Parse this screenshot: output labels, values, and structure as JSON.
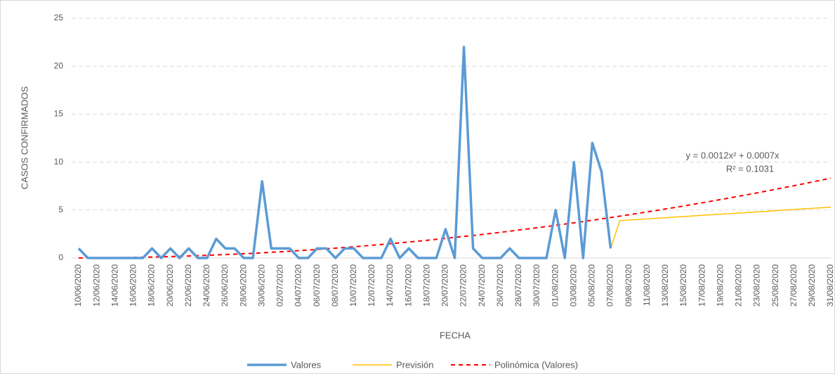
{
  "chart_data": {
    "type": "line",
    "y_label": "CASOS CONFIRMADOS",
    "x_label": "FECHA",
    "annotation": [
      "y = 0.0012x² + 0.0007x",
      "R² = 0.1031"
    ],
    "categories": [
      "10/06/2020",
      null,
      "12/06/2020",
      null,
      "14/06/2020",
      null,
      "16/06/2020",
      null,
      "18/06/2020",
      null,
      "20/06/2020",
      null,
      "22/06/2020",
      null,
      "24/06/2020",
      null,
      "26/06/2020",
      null,
      "28/06/2020",
      null,
      "30/06/2020",
      null,
      "02/07/2020",
      null,
      "04/07/2020",
      null,
      "06/07/2020",
      null,
      "08/07/2020",
      null,
      "10/07/2020",
      null,
      "12/07/2020",
      null,
      "14/07/2020",
      null,
      "16/07/2020",
      null,
      "18/07/2020",
      null,
      "20/07/2020",
      null,
      "22/07/2020",
      null,
      "24/07/2020",
      null,
      "26/07/2020",
      null,
      "28/07/2020",
      null,
      "30/07/2020",
      null,
      "01/08/2020",
      null,
      "03/08/2020",
      null,
      "05/08/2020",
      null,
      "07/08/2020",
      null,
      "09/08/2020",
      null,
      "11/08/2020",
      null,
      "13/08/2020",
      null,
      "15/08/2020",
      null,
      "17/08/2020",
      null,
      "19/08/2020",
      null,
      "21/08/2020",
      null,
      "23/08/2020",
      null,
      "25/08/2020",
      null,
      "27/08/2020",
      null,
      "29/08/2020",
      null,
      "31/08/2020"
    ],
    "series": [
      {
        "name": "Valores",
        "color": "#5b9bd5",
        "style": "solid",
        "values": [
          1,
          0,
          0,
          0,
          0,
          0,
          0,
          0,
          1,
          0,
          1,
          0,
          1,
          0,
          0,
          2,
          1,
          1,
          0,
          0,
          8,
          1,
          1,
          1,
          0,
          0,
          1,
          1,
          0,
          1,
          1,
          0,
          0,
          0,
          2,
          0,
          1,
          0,
          0,
          0,
          3,
          0,
          22,
          1,
          0,
          0,
          0,
          1,
          0,
          0,
          0,
          0,
          5,
          0,
          10,
          0,
          12,
          9,
          1,
          null,
          null,
          null,
          null,
          null,
          null,
          null,
          null,
          null,
          null,
          null,
          null,
          null,
          null,
          null,
          null,
          null,
          null,
          null,
          null,
          null,
          null,
          null,
          null
        ]
      },
      {
        "name": "Previsión",
        "color": "#ffc000",
        "style": "solid",
        "values": [
          null,
          null,
          null,
          null,
          null,
          null,
          null,
          null,
          null,
          null,
          null,
          null,
          null,
          null,
          null,
          null,
          null,
          null,
          null,
          null,
          null,
          null,
          null,
          null,
          null,
          null,
          null,
          null,
          null,
          null,
          null,
          null,
          null,
          null,
          null,
          null,
          null,
          null,
          null,
          null,
          null,
          null,
          null,
          null,
          null,
          null,
          null,
          null,
          null,
          null,
          null,
          null,
          null,
          null,
          null,
          null,
          null,
          null,
          1,
          3.9,
          3.96,
          4.02,
          4.08,
          4.14,
          4.2,
          4.27,
          4.33,
          4.39,
          4.45,
          4.51,
          4.57,
          4.63,
          4.69,
          4.75,
          4.81,
          4.87,
          4.94,
          5.0,
          5.06,
          5.12,
          5.18,
          5.24,
          5.3
        ]
      },
      {
        "name": "Polinómica (Valores)",
        "color": "#ff0000",
        "style": "dashed",
        "values": [
          0.0,
          0.01,
          0.01,
          0.02,
          0.03,
          0.05,
          0.06,
          0.08,
          0.1,
          0.13,
          0.15,
          0.18,
          0.21,
          0.25,
          0.28,
          0.32,
          0.36,
          0.4,
          0.45,
          0.49,
          0.54,
          0.6,
          0.65,
          0.71,
          0.77,
          0.83,
          0.89,
          0.96,
          1.03,
          1.1,
          1.17,
          1.25,
          1.33,
          1.41,
          1.49,
          1.58,
          1.67,
          1.76,
          1.85,
          1.95,
          2.05,
          2.15,
          2.25,
          2.35,
          2.46,
          2.57,
          2.68,
          2.8,
          2.92,
          3.04,
          3.16,
          3.28,
          3.41,
          3.54,
          3.67,
          3.8,
          3.94,
          4.08,
          4.22,
          4.36,
          4.51,
          4.66,
          4.81,
          4.96,
          5.12,
          5.27,
          5.43,
          5.6,
          5.76,
          5.93,
          6.1,
          6.27,
          6.45,
          6.62,
          6.8,
          6.98,
          7.17,
          7.36,
          7.54,
          7.74,
          7.93,
          8.13,
          8.32
        ]
      }
    ],
    "ylim": [
      0,
      25
    ],
    "yticks": [
      0,
      5,
      10,
      15,
      20,
      25
    ],
    "grid": true,
    "legend": "bottom"
  }
}
